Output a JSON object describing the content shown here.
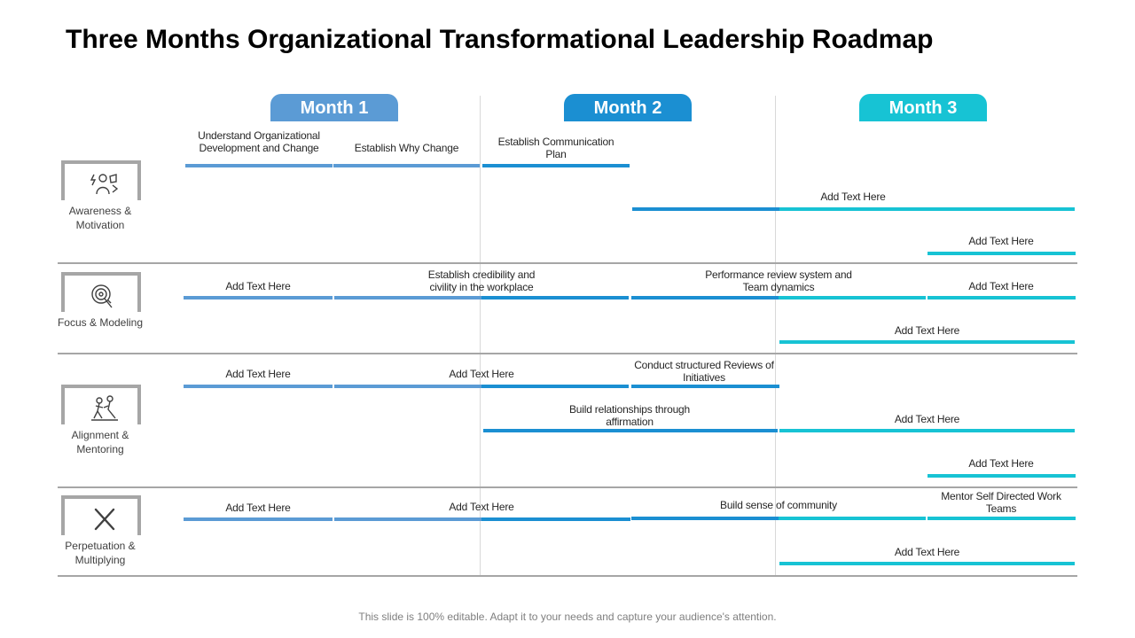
{
  "title": "Three Months Organizational Transformational Leadership Roadmap",
  "footer": "This slide is 100% editable. Adapt it to your needs and capture your audience's attention.",
  "colors": {
    "month1": "#5b9bd5",
    "month2": "#1b8fd2",
    "month3": "#17c3d4",
    "divider": "#a6a6a6"
  },
  "months": [
    {
      "label": "Month 1",
      "color": "#5b9bd5"
    },
    {
      "label": "Month 2",
      "color": "#1b8fd2"
    },
    {
      "label": "Month 3",
      "color": "#17c3d4"
    }
  ],
  "rows": [
    {
      "label": "Awareness & Motivation",
      "icon": "people-ideas-icon"
    },
    {
      "label": "Focus & Modeling",
      "icon": "target-icon"
    },
    {
      "label": "Alignment & Mentoring",
      "icon": "mentoring-icon"
    },
    {
      "label": "Perpetuation & Multiplying",
      "icon": "cross-tools-icon"
    }
  ],
  "tasks": [
    {
      "row": 0,
      "label": "Understand Organizational Development and Change"
    },
    {
      "row": 0,
      "label": "Establish Why Change"
    },
    {
      "row": 0,
      "label": "Establish Communication Plan"
    },
    {
      "row": 0,
      "label": "Add Text Here"
    },
    {
      "row": 0,
      "label": "Add Text Here"
    },
    {
      "row": 1,
      "label": "Add Text Here"
    },
    {
      "row": 1,
      "label": "Establish credibility and civility in the workplace"
    },
    {
      "row": 1,
      "label": "Performance review system and Team dynamics"
    },
    {
      "row": 1,
      "label": "Add Text Here"
    },
    {
      "row": 1,
      "label": "Add Text Here"
    },
    {
      "row": 2,
      "label": "Add Text Here"
    },
    {
      "row": 2,
      "label": "Add Text Here"
    },
    {
      "row": 2,
      "label": "Conduct structured Reviews of Initiatives"
    },
    {
      "row": 2,
      "label": "Build relationships through affirmation"
    },
    {
      "row": 2,
      "label": "Add Text Here"
    },
    {
      "row": 2,
      "label": "Add Text Here"
    },
    {
      "row": 3,
      "label": "Add Text Here"
    },
    {
      "row": 3,
      "label": "Add Text Here"
    },
    {
      "row": 3,
      "label": "Build sense of community"
    },
    {
      "row": 3,
      "label": "Mentor Self Directed Work Teams"
    },
    {
      "row": 3,
      "label": "Add Text Here"
    }
  ]
}
